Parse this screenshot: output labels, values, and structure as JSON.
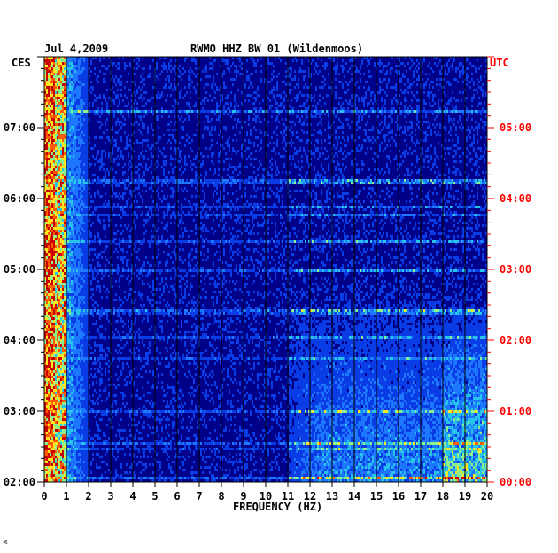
{
  "header": {
    "date": "Jul 4,2009",
    "station": "RWMO HHZ BW 01 (Wildenmoos)"
  },
  "corner_mark": "⩽",
  "chart_data": {
    "type": "heatmap",
    "title": "RWMO HHZ BW 01 (Wildenmoos)",
    "date": "Jul 4,2009",
    "xlabel": "FREQUENCY (HZ)",
    "x_range": [
      0,
      20
    ],
    "x_ticks": [
      "0",
      "1",
      "2",
      "3",
      "4",
      "5",
      "6",
      "7",
      "8",
      "9",
      "10",
      "11",
      "12",
      "13",
      "14",
      "15",
      "16",
      "17",
      "18",
      "19",
      "20"
    ],
    "left_axis": {
      "timezone": "CES",
      "ticks": [
        {
          "label": "07:00",
          "hour": 7
        },
        {
          "label": "06:00",
          "hour": 6
        },
        {
          "label": "05:00",
          "hour": 5
        },
        {
          "label": "04:00",
          "hour": 4
        },
        {
          "label": "03:00",
          "hour": 3
        },
        {
          "label": "02:00",
          "hour": 2
        }
      ],
      "range_hours": [
        2,
        8
      ]
    },
    "right_axis": {
      "timezone": "UTC",
      "color": "#ff0000",
      "ticks": [
        {
          "label": "05:00",
          "hour": 5
        },
        {
          "label": "04:00",
          "hour": 4
        },
        {
          "label": "03:00",
          "hour": 3
        },
        {
          "label": "02:00",
          "hour": 2
        },
        {
          "label": "01:00",
          "hour": 1
        },
        {
          "label": "00:00",
          "hour": 0
        }
      ],
      "range_hours": [
        0,
        6
      ]
    },
    "colors": {
      "background": "#000088",
      "gridline": "#000000",
      "scale": [
        "#000c96",
        "#0a3ce6",
        "#1e78ff",
        "#28c3eb",
        "#8cf08c",
        "#ffe61e",
        "#ff5a00",
        "#c80000"
      ]
    },
    "intensity_bands": [
      {
        "freq_range": [
          0,
          1
        ],
        "level": "high"
      },
      {
        "freq_range": [
          1,
          2
        ],
        "level": "medium"
      },
      {
        "freq_range": [
          11,
          20
        ],
        "hour_range": [
          2,
          4.8
        ],
        "level": "medium"
      },
      {
        "freq_range": [
          18,
          20
        ],
        "hour_range": [
          2,
          4.5
        ],
        "level": "high"
      }
    ],
    "grid": true
  }
}
